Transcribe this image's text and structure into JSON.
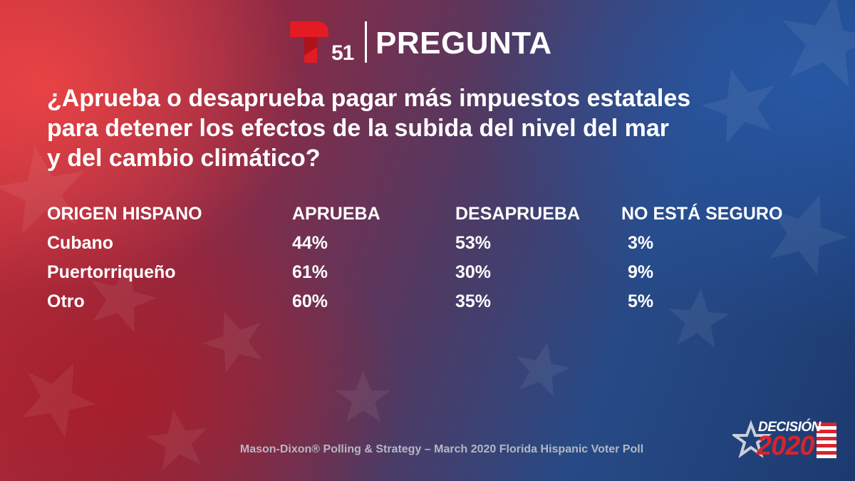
{
  "header": {
    "logo_number": "51",
    "title": "PREGUNTA",
    "logo_color": "#e31b23"
  },
  "question": {
    "lines": [
      "¿Aprueba o desaprueba pagar más impuestos estatales",
      "para detener los efectos de la subida del nivel del mar",
      "y del cambio climático?"
    ]
  },
  "table": {
    "headers": [
      "ORIGEN HISPANO",
      "APRUEBA",
      "DESAPRUEBA",
      "NO ESTÁ SEGURO"
    ],
    "rows": [
      [
        "Cubano",
        "44%",
        "53%",
        "3%"
      ],
      [
        "Puertorriqueño",
        "61%",
        "30%",
        "9%"
      ],
      [
        "Otro",
        "60%",
        "35%",
        "5%"
      ]
    ]
  },
  "footer": {
    "source": "Mason-Dixon® Polling & Strategy – March 2020 Florida Hispanic Voter Poll",
    "badge_top": "DECISIÓN",
    "badge_year": "2020"
  }
}
